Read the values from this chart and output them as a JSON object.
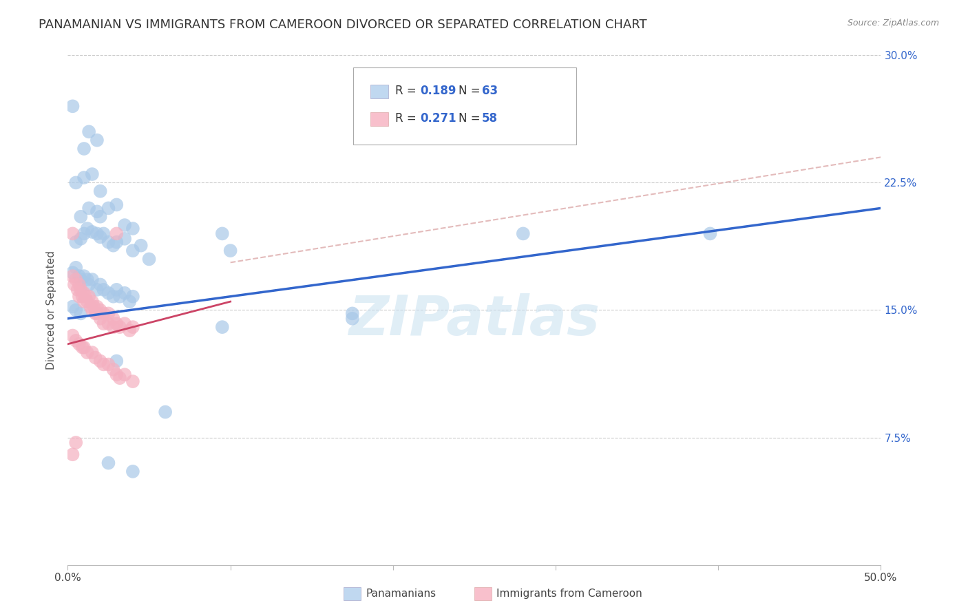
{
  "title": "PANAMANIAN VS IMMIGRANTS FROM CAMEROON DIVORCED OR SEPARATED CORRELATION CHART",
  "source": "Source: ZipAtlas.com",
  "ylabel": "Divorced or Separated",
  "xlim": [
    0.0,
    0.5
  ],
  "ylim": [
    0.0,
    0.3
  ],
  "xticks": [
    0.0,
    0.1,
    0.2,
    0.3,
    0.4,
    0.5
  ],
  "yticks": [
    0.0,
    0.075,
    0.15,
    0.225,
    0.3
  ],
  "watermark": "ZIPatlas",
  "blue_color": "#a8c8e8",
  "pink_color": "#f4b0c0",
  "blue_line_color": "#3366cc",
  "pink_line_color": "#cc4466",
  "blue_text_color": "#3366cc",
  "title_fontsize": 13,
  "axis_label_fontsize": 11,
  "tick_fontsize": 11,
  "blue_scatter": [
    [
      0.003,
      0.27
    ],
    [
      0.01,
      0.245
    ],
    [
      0.013,
      0.255
    ],
    [
      0.018,
      0.25
    ],
    [
      0.005,
      0.225
    ],
    [
      0.01,
      0.228
    ],
    [
      0.015,
      0.23
    ],
    [
      0.02,
      0.22
    ],
    [
      0.008,
      0.205
    ],
    [
      0.013,
      0.21
    ],
    [
      0.018,
      0.208
    ],
    [
      0.02,
      0.205
    ],
    [
      0.025,
      0.21
    ],
    [
      0.03,
      0.212
    ],
    [
      0.035,
      0.2
    ],
    [
      0.04,
      0.198
    ],
    [
      0.005,
      0.19
    ],
    [
      0.008,
      0.192
    ],
    [
      0.01,
      0.195
    ],
    [
      0.012,
      0.198
    ],
    [
      0.015,
      0.196
    ],
    [
      0.018,
      0.195
    ],
    [
      0.02,
      0.193
    ],
    [
      0.022,
      0.195
    ],
    [
      0.025,
      0.19
    ],
    [
      0.028,
      0.188
    ],
    [
      0.03,
      0.19
    ],
    [
      0.035,
      0.192
    ],
    [
      0.04,
      0.185
    ],
    [
      0.045,
      0.188
    ],
    [
      0.05,
      0.18
    ],
    [
      0.003,
      0.172
    ],
    [
      0.005,
      0.175
    ],
    [
      0.007,
      0.17
    ],
    [
      0.008,
      0.168
    ],
    [
      0.01,
      0.17
    ],
    [
      0.012,
      0.168
    ],
    [
      0.013,
      0.165
    ],
    [
      0.015,
      0.168
    ],
    [
      0.018,
      0.162
    ],
    [
      0.02,
      0.165
    ],
    [
      0.022,
      0.162
    ],
    [
      0.025,
      0.16
    ],
    [
      0.028,
      0.158
    ],
    [
      0.03,
      0.162
    ],
    [
      0.032,
      0.158
    ],
    [
      0.035,
      0.16
    ],
    [
      0.038,
      0.155
    ],
    [
      0.04,
      0.158
    ],
    [
      0.003,
      0.152
    ],
    [
      0.005,
      0.15
    ],
    [
      0.008,
      0.148
    ],
    [
      0.095,
      0.195
    ],
    [
      0.1,
      0.185
    ],
    [
      0.175,
      0.148
    ],
    [
      0.28,
      0.195
    ],
    [
      0.395,
      0.195
    ],
    [
      0.175,
      0.145
    ],
    [
      0.095,
      0.14
    ],
    [
      0.03,
      0.12
    ],
    [
      0.06,
      0.09
    ],
    [
      0.025,
      0.06
    ],
    [
      0.04,
      0.055
    ]
  ],
  "pink_scatter": [
    [
      0.003,
      0.17
    ],
    [
      0.004,
      0.165
    ],
    [
      0.005,
      0.168
    ],
    [
      0.006,
      0.162
    ],
    [
      0.007,
      0.165
    ],
    [
      0.007,
      0.158
    ],
    [
      0.008,
      0.162
    ],
    [
      0.009,
      0.158
    ],
    [
      0.01,
      0.16
    ],
    [
      0.01,
      0.155
    ],
    [
      0.011,
      0.158
    ],
    [
      0.012,
      0.155
    ],
    [
      0.013,
      0.158
    ],
    [
      0.014,
      0.152
    ],
    [
      0.015,
      0.155
    ],
    [
      0.015,
      0.15
    ],
    [
      0.016,
      0.152
    ],
    [
      0.017,
      0.148
    ],
    [
      0.018,
      0.152
    ],
    [
      0.018,
      0.148
    ],
    [
      0.02,
      0.15
    ],
    [
      0.02,
      0.145
    ],
    [
      0.022,
      0.148
    ],
    [
      0.022,
      0.142
    ],
    [
      0.025,
      0.148
    ],
    [
      0.025,
      0.142
    ],
    [
      0.028,
      0.145
    ],
    [
      0.028,
      0.14
    ],
    [
      0.03,
      0.142
    ],
    [
      0.032,
      0.14
    ],
    [
      0.035,
      0.142
    ],
    [
      0.038,
      0.138
    ],
    [
      0.04,
      0.14
    ],
    [
      0.003,
      0.135
    ],
    [
      0.005,
      0.132
    ],
    [
      0.007,
      0.13
    ],
    [
      0.009,
      0.128
    ],
    [
      0.01,
      0.128
    ],
    [
      0.012,
      0.125
    ],
    [
      0.015,
      0.125
    ],
    [
      0.017,
      0.122
    ],
    [
      0.02,
      0.12
    ],
    [
      0.022,
      0.118
    ],
    [
      0.025,
      0.118
    ],
    [
      0.028,
      0.115
    ],
    [
      0.03,
      0.112
    ],
    [
      0.032,
      0.11
    ],
    [
      0.035,
      0.112
    ],
    [
      0.04,
      0.108
    ],
    [
      0.003,
      0.195
    ],
    [
      0.03,
      0.195
    ],
    [
      0.003,
      0.065
    ],
    [
      0.005,
      0.072
    ]
  ],
  "blue_line": {
    "x0": 0.0,
    "y0": 0.145,
    "x1": 0.5,
    "y1": 0.21
  },
  "pink_line": {
    "x0": 0.0,
    "y0": 0.13,
    "x1": 0.1,
    "y1": 0.155
  },
  "pink_dashed_line": {
    "x0": 0.1,
    "y0": 0.178,
    "x1": 0.5,
    "y1": 0.24
  }
}
